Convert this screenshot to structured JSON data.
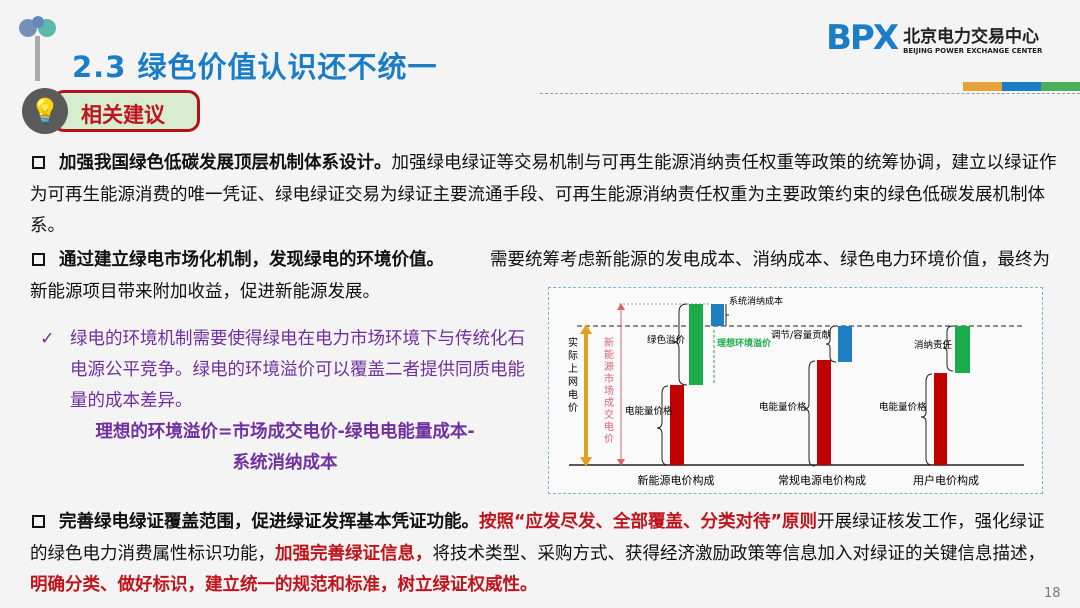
{
  "header": {
    "title": "2.3 绿色价值认识还不统一",
    "logo_mark": "BPX",
    "logo_cn": "北京电力交易中心",
    "logo_en": "BEIJING POWER EXCHANGE CENTER",
    "accent_colors": [
      "#e8a23a",
      "#1c7dc7",
      "#4cb05a"
    ]
  },
  "section_badge": {
    "label": "相关建议",
    "icon": "lightbulb-icon"
  },
  "paragraphs": [
    {
      "bold": "加强我国绿色低碳发展顶层机制体系设计。",
      "text": "加强绿电绿证等交易机制与可再生能源消纳责任权重等政策的统筹协调，建立以绿证作为可再生能源消费的唯一凭证、绿电绿证交易为绿证主要流通手段、可再生能源消纳责任权重为主要政策约束的绿色低碳发展机制体系。"
    },
    {
      "bold": "通过建立绿电市场化机制，发现绿电的环境价值。",
      "text": "需要统筹考虑新能源的发电成本、消纳成本、绿色电力环境价值，最终为新能源项目带来附加收益，促进新能源发展。"
    },
    {
      "bold": "完善绿电绿证覆盖范围，促进绿证发挥基本凭证功能。",
      "red1": "按照“应发尽发、全部覆盖、分类对待”原则",
      "t1": "开展绿证核发工作，强化绿证的绿色电力消费属性标识功能，",
      "red2": "加强完善绿证信息，",
      "t2": "将技术类型、采购方式、获得经济激励政策等信息加入对绿证的关键信息描述，",
      "red3": "明确分类、做好标识，建立统一的规范和标准，树立绿证权威性。"
    }
  ],
  "note": {
    "check": "✓",
    "text": "绿电的环境机制需要使得绿电在电力市场环境下与传统化石电源公平竞争。绿电的环境溢价可以覆盖二者提供同质电能量的成本差异。",
    "formula1": "理想的环境溢价=市场成交电价-绿电电能量成本-",
    "formula2": "系统消纳成本"
  },
  "diagram": {
    "axis_actual": "实际上网电价",
    "axis_market": "新能源市场成交电价",
    "labels": {
      "sys_cost": "系统消纳成本",
      "green_premium": "绿色溢价",
      "ideal": "理想环境溢价",
      "energy1": "电能量价格",
      "regulate": "调节/容量贡献",
      "energy2": "电能量价格",
      "absorb": "消纳责任",
      "energy3": "电能量价格"
    },
    "groups": [
      "新能源电价构成",
      "常规电源电价构成",
      "用户电价构成"
    ],
    "colors": {
      "red": "#c00000",
      "green": "#1aab4a",
      "blue": "#1f7fc0",
      "orange": "#e0a020",
      "pink": "#e06070"
    }
  },
  "page_number": "18"
}
